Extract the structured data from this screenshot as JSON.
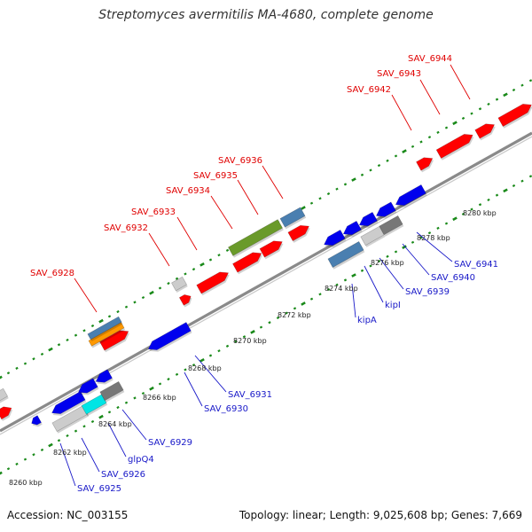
{
  "title": "Streptomyces avermitilis MA-4680, complete genome",
  "footer": {
    "accession": "Accession: NC_003155",
    "summary": "Topology: linear; Length: 9,025,608 bp; Genes: 7,669"
  },
  "colors": {
    "forward_gene": "#ff0000",
    "reverse_gene": "#0000ee",
    "top_label": "#e00000",
    "bottom_label": "#1818c8",
    "track_dots": "#1a8a1a",
    "backbone": "#8a8a8a"
  },
  "kbp_labels": [
    "8260 kbp",
    "8262 kbp",
    "8264 kbp",
    "8266 kbp",
    "8268 kbp",
    "8270 kbp",
    "8272 kbp",
    "8274 kbp",
    "8276 kbp",
    "8278 kbp",
    "8280 kbp"
  ],
  "top_gene_labels": [
    "SAV_6928",
    "SAV_6932",
    "SAV_6933",
    "SAV_6934",
    "SAV_6935",
    "SAV_6936",
    "SAV_6942",
    "SAV_6943",
    "SAV_6944"
  ],
  "bottom_gene_labels": [
    "SAV_6925",
    "SAV_6926",
    "glpQ4",
    "SAV_6929",
    "SAV_6930",
    "SAV_6931",
    "kipA",
    "kipI",
    "SAV_6939",
    "SAV_6940",
    "SAV_6941"
  ]
}
